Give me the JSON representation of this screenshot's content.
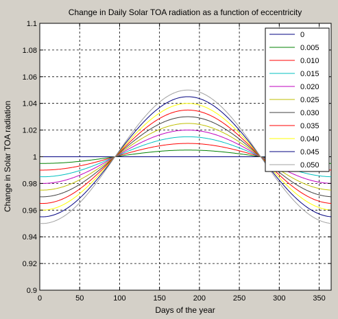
{
  "chart_data": {
    "type": "line",
    "title": "Change in Daily Solar TOA radiation as a function of eccentricity",
    "xlabel": "Days of the year",
    "ylabel": "Change in Solar TOA radiation",
    "xlim": [
      0,
      365
    ],
    "ylim": [
      0.9,
      1.1
    ],
    "x_ticks": [
      0,
      50,
      100,
      150,
      200,
      250,
      300,
      350
    ],
    "y_ticks": [
      0.9,
      0.92,
      0.94,
      0.96,
      0.98,
      1,
      1.02,
      1.04,
      1.06,
      1.08,
      1.1
    ],
    "x_tick_labels": [
      "0",
      "50",
      "100",
      "150",
      "200",
      "250",
      "300",
      "350"
    ],
    "y_tick_labels": [
      "0.9",
      "0.92",
      "0.94",
      "0.96",
      "0.98",
      "1",
      "1.02",
      "1.04",
      "1.06",
      "1.08",
      "1.1"
    ],
    "grid": true,
    "legend_position": "top-right",
    "curve": {
      "form": "1 - e*cos(2*pi*(day - 3)/365)",
      "peak_day": 185.5,
      "trough_day": 3
    },
    "series": [
      {
        "name": "0",
        "eccentricity": 0.0,
        "color": "#000080"
      },
      {
        "name": "0.005",
        "eccentricity": 0.005,
        "color": "#008000"
      },
      {
        "name": "0.010",
        "eccentricity": 0.01,
        "color": "#ff0000"
      },
      {
        "name": "0.015",
        "eccentricity": 0.015,
        "color": "#00bfbf"
      },
      {
        "name": "0.020",
        "eccentricity": 0.02,
        "color": "#bf00bf"
      },
      {
        "name": "0.025",
        "eccentricity": 0.025,
        "color": "#bfbf00"
      },
      {
        "name": "0.030",
        "eccentricity": 0.03,
        "color": "#404040"
      },
      {
        "name": "0.035",
        "eccentricity": 0.035,
        "color": "#ff0000"
      },
      {
        "name": "0.040",
        "eccentricity": 0.04,
        "color": "#ffff00"
      },
      {
        "name": "0.045",
        "eccentricity": 0.045,
        "color": "#000080"
      },
      {
        "name": "0.050",
        "eccentricity": 0.05,
        "color": "#a0a0a0"
      }
    ]
  }
}
